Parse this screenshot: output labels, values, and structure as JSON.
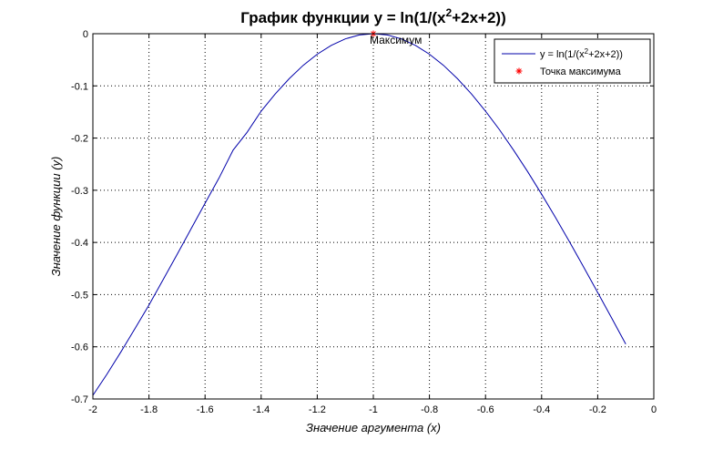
{
  "chart_data": {
    "type": "line",
    "title": "График функции y = ln(1/(x^2+2x+2))",
    "title_parts": {
      "before": "График функции y = ln(1/(x",
      "exponent": "2",
      "after": "+2x+2))"
    },
    "xlabel": "Значение аргумента (x)",
    "ylabel": "Значение функции (y)",
    "xlim": [
      -2,
      0
    ],
    "ylim": [
      -0.7,
      0
    ],
    "x_ticks": [
      -2,
      -1.8,
      -1.6,
      -1.4,
      -1.2,
      -1,
      -0.8,
      -0.6,
      -0.4,
      -0.2,
      0
    ],
    "x_tick_labels": [
      "-2",
      "-1.8",
      "-1.6",
      "-1.4",
      "-1.2",
      "-1",
      "-0.8",
      "-0.6",
      "-0.4",
      "-0.2",
      "0"
    ],
    "y_ticks": [
      0,
      -0.1,
      -0.2,
      -0.3,
      -0.4,
      -0.5,
      -0.6,
      -0.7
    ],
    "y_tick_labels": [
      "0",
      "-0.1",
      "-0.2",
      "-0.3",
      "-0.4",
      "-0.5",
      "-0.6",
      "-0.7"
    ],
    "grid": true,
    "legend_position": "top-right",
    "series": [
      {
        "name": "y = ln(1/(x^2+2x+2))",
        "name_parts": {
          "before": "y = ln(1/(x",
          "exponent": "2",
          "after": "+2x+2))"
        },
        "color": "#0000aa",
        "x": [
          -2.0,
          -1.95,
          -1.9,
          -1.85,
          -1.8,
          -1.75,
          -1.7,
          -1.65,
          -1.6,
          -1.55,
          -1.5,
          -1.45,
          -1.4,
          -1.35,
          -1.3,
          -1.25,
          -1.2,
          -1.15,
          -1.1,
          -1.05,
          -1.0,
          -0.95,
          -0.9,
          -0.85,
          -0.8,
          -0.75,
          -0.7,
          -0.65,
          -0.6,
          -0.55,
          -0.5,
          -0.45,
          -0.4,
          -0.35,
          -0.3,
          -0.25,
          -0.2,
          -0.15,
          -0.1
        ],
        "y": [
          -0.6931,
          -0.6527,
          -0.6098,
          -0.5652,
          -0.52,
          -0.4719,
          -0.4233,
          -0.3741,
          -0.3249,
          -0.2764,
          -0.2231,
          -0.1889,
          -0.1484,
          -0.1155,
          -0.0862,
          -0.0606,
          -0.0392,
          -0.0223,
          -0.01,
          -0.0025,
          0.0,
          -0.0025,
          -0.01,
          -0.0223,
          -0.0392,
          -0.0606,
          -0.0862,
          -0.1155,
          -0.1484,
          -0.1841,
          -0.2231,
          -0.2642,
          -0.3075,
          -0.3527,
          -0.3994,
          -0.4473,
          -0.4959,
          -0.5452,
          -0.5947
        ]
      }
    ],
    "markers": [
      {
        "name": "Точка максимума",
        "color": "#ff0000",
        "symbol": "asterisk",
        "x": -1,
        "y": 0,
        "annotation": "Максимум"
      }
    ]
  }
}
